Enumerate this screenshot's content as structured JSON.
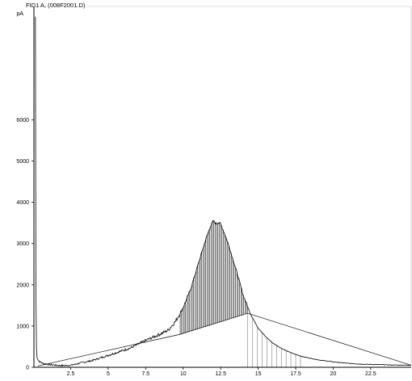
{
  "chart_data": {
    "type": "line",
    "title": "FID1 A, (008F2001.D)",
    "ylabel": "pA",
    "xlabel": "",
    "x_tick_labels": [
      "2.5",
      "5",
      "7.5",
      "10",
      "12.5",
      "15",
      "17.5",
      "20",
      "22.5"
    ],
    "x_ticks": [
      2.5,
      5,
      7.5,
      10,
      12.5,
      15,
      17.5,
      20,
      22.5
    ],
    "y_tick_labels": [
      "0",
      "1000",
      "2000",
      "3000",
      "4000",
      "5000",
      "6000"
    ],
    "y_ticks": [
      0,
      1000,
      2000,
      3000,
      4000,
      5000,
      6000
    ],
    "xlim": [
      0.05,
      25.2
    ],
    "ylim": [
      0,
      8750
    ],
    "grid": false,
    "series": [
      {
        "color": "#000000",
        "x": [
          0.15,
          0.18,
          0.2,
          0.25,
          0.35,
          0.5,
          0.7,
          1.0,
          1.5,
          2.0,
          2.5,
          3.0,
          3.5,
          4.0,
          4.5,
          5.0,
          5.5,
          6.0,
          6.5,
          7.0,
          7.5,
          8.0,
          8.5,
          9.0,
          9.5,
          10.0,
          10.5,
          11.0,
          11.5,
          11.8,
          12.0,
          12.2,
          12.4,
          12.5,
          12.7,
          13.0,
          13.5,
          14.0,
          14.5,
          15.0,
          15.5,
          16.0,
          16.5,
          17.0,
          17.5,
          18.0,
          19.0,
          20.0,
          21.0,
          22.0,
          23.0,
          24.0,
          25.2
        ],
        "y": [
          8500,
          2000,
          600,
          250,
          160,
          120,
          90,
          70,
          50,
          40,
          50,
          90,
          130,
          170,
          230,
          290,
          350,
          410,
          470,
          560,
          650,
          730,
          810,
          900,
          1120,
          1450,
          1900,
          2500,
          3100,
          3400,
          3550,
          3480,
          3520,
          3460,
          3300,
          3000,
          2400,
          1750,
          1280,
          950,
          740,
          580,
          470,
          380,
          310,
          255,
          180,
          130,
          95,
          75,
          65,
          55,
          50
        ]
      }
    ],
    "baseline": {
      "x": [
        0.3,
        9.8,
        14.3,
        25.2
      ],
      "y": [
        30,
        800,
        1310,
        50
      ]
    },
    "peak_region_x": [
      9.8,
      14.3
    ],
    "tail_drop_x": [
      14.3,
      18.0
    ]
  }
}
